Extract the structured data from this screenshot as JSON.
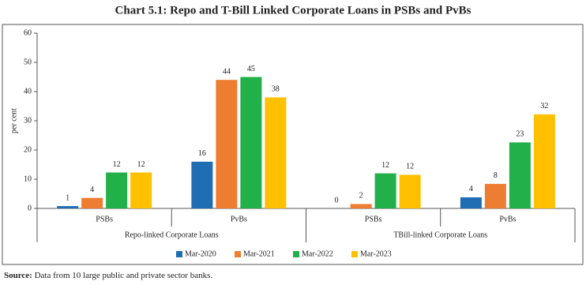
{
  "chart_data": {
    "type": "bar",
    "title": "Chart 5.1: Repo and T-Bill Linked Corporate Loans in PSBs and PvBs",
    "y_label": "per cent",
    "groups": [
      {
        "name": "Repo-linked Corporate Loans",
        "categories": [
          "PSBs",
          "PvBs"
        ]
      },
      {
        "name": "TBill-linked Corporate Loans",
        "categories": [
          "PSBs",
          "PvBs"
        ]
      }
    ],
    "series": [
      {
        "name": "Mar-2020",
        "color": "#1f6db3",
        "values": [
          0.8,
          16,
          0,
          3.8
        ],
        "value_labels": [
          "1",
          "16",
          "0",
          "4"
        ]
      },
      {
        "name": "Mar-2021",
        "color": "#ed7d31",
        "values": [
          3.6,
          44,
          1.5,
          8.4
        ],
        "value_labels": [
          "4",
          "44",
          "2",
          "8"
        ]
      },
      {
        "name": "Mar-2022",
        "color": "#22b04b",
        "values": [
          12.3,
          45,
          12,
          22.6
        ],
        "value_labels": [
          "12",
          "45",
          "12",
          "23"
        ]
      },
      {
        "name": "Mar-2023",
        "color": "#ffc000",
        "values": [
          12.3,
          38,
          11.5,
          32.2
        ],
        "value_labels": [
          "12",
          "38",
          "12",
          "32"
        ]
      }
    ],
    "ylim": [
      0,
      60
    ],
    "yticks": [
      0,
      10,
      20,
      30,
      40,
      50,
      60
    ],
    "grid": false,
    "legend": "bottom",
    "source_label": "Source:",
    "source": "Data from 10 large public and private sector banks."
  }
}
